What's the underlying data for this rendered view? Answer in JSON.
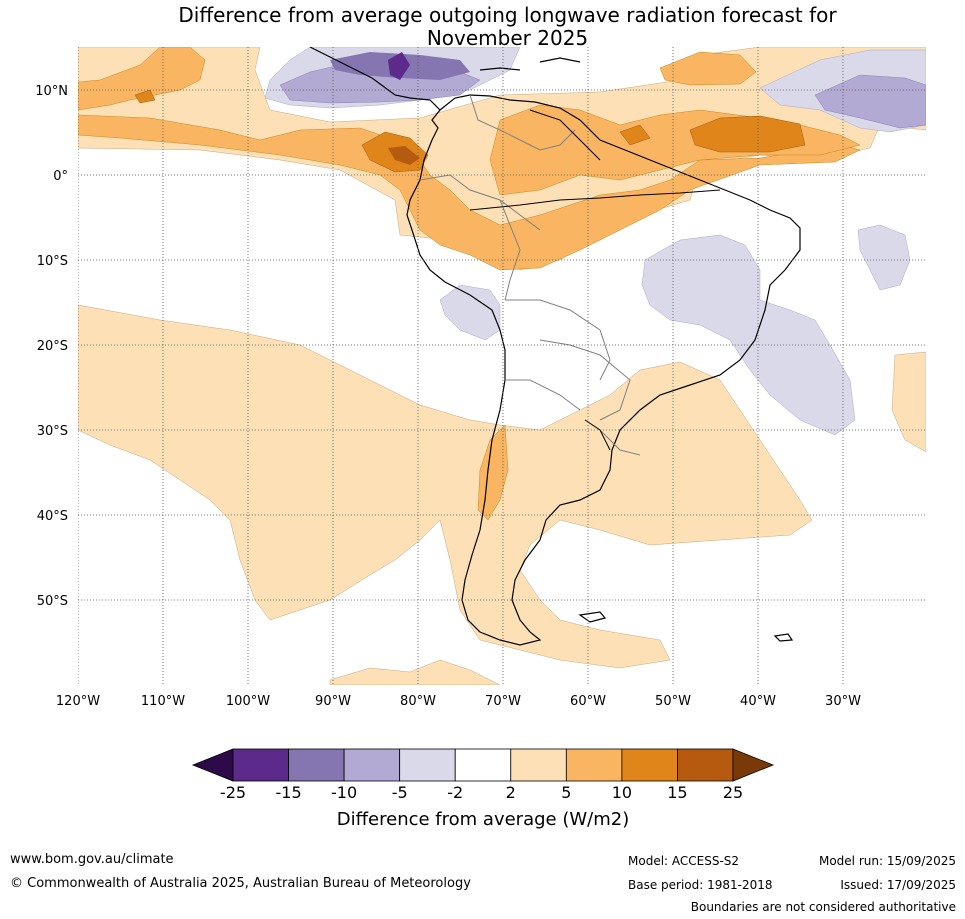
{
  "title_line1": "Difference from average outgoing longwave radiation forecast for",
  "title_line2": "November 2025",
  "lat_labels": [
    "10°N",
    "0°",
    "10°S",
    "20°S",
    "30°S",
    "40°S",
    "50°S"
  ],
  "lon_labels": [
    "120°W",
    "110°W",
    "100°W",
    "90°W",
    "80°W",
    "70°W",
    "60°W",
    "50°W",
    "40°W",
    "30°W"
  ],
  "colorbar": {
    "ticks": [
      "-25",
      "-15",
      "-10",
      "-5",
      "-2",
      "2",
      "5",
      "10",
      "15",
      "25"
    ],
    "colors": [
      "#2d0a4a",
      "#5b2a8a",
      "#8575b0",
      "#b2aad3",
      "#d9d9ea",
      "#ffffff",
      "#fde0b6",
      "#fab562",
      "#e0851a",
      "#b55a0e",
      "#7a3a08"
    ],
    "label": "Difference from average (W/m2)"
  },
  "footer": {
    "website": "www.bom.gov.au/climate",
    "copyright": "© Commonwealth of Australia 2025, Australian Bureau of Meteorology",
    "model": "Model: ACCESS-S2",
    "base_period": "Base period: 1981-2018",
    "model_run": "Model run: 15/09/2025",
    "issued": "Issued: 17/09/2025",
    "disclaimer": "Boundaries are not considered authoritative"
  }
}
